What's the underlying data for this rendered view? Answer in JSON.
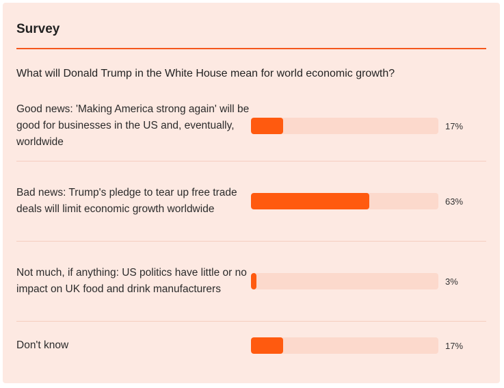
{
  "survey": {
    "title": "Survey",
    "question": "What will Donald Trump in the White House mean for world economic growth?",
    "accent_color": "#ff5a0f",
    "track_color": "#fcd9cc",
    "options": [
      {
        "label": "Good news: 'Making America strong again' will be good for businesses in the US and, eventually, worldwide",
        "percent": 17,
        "percent_text": "17%"
      },
      {
        "label": "Bad news: Trump's pledge to tear up free trade deals will limit economic growth worldwide",
        "percent": 63,
        "percent_text": "63%"
      },
      {
        "label": "Not much, if anything: US politics have little or no impact on UK food and drink manufacturers",
        "percent": 3,
        "percent_text": "3%"
      },
      {
        "label": "Don't know",
        "percent": 17,
        "percent_text": "17%"
      }
    ]
  }
}
